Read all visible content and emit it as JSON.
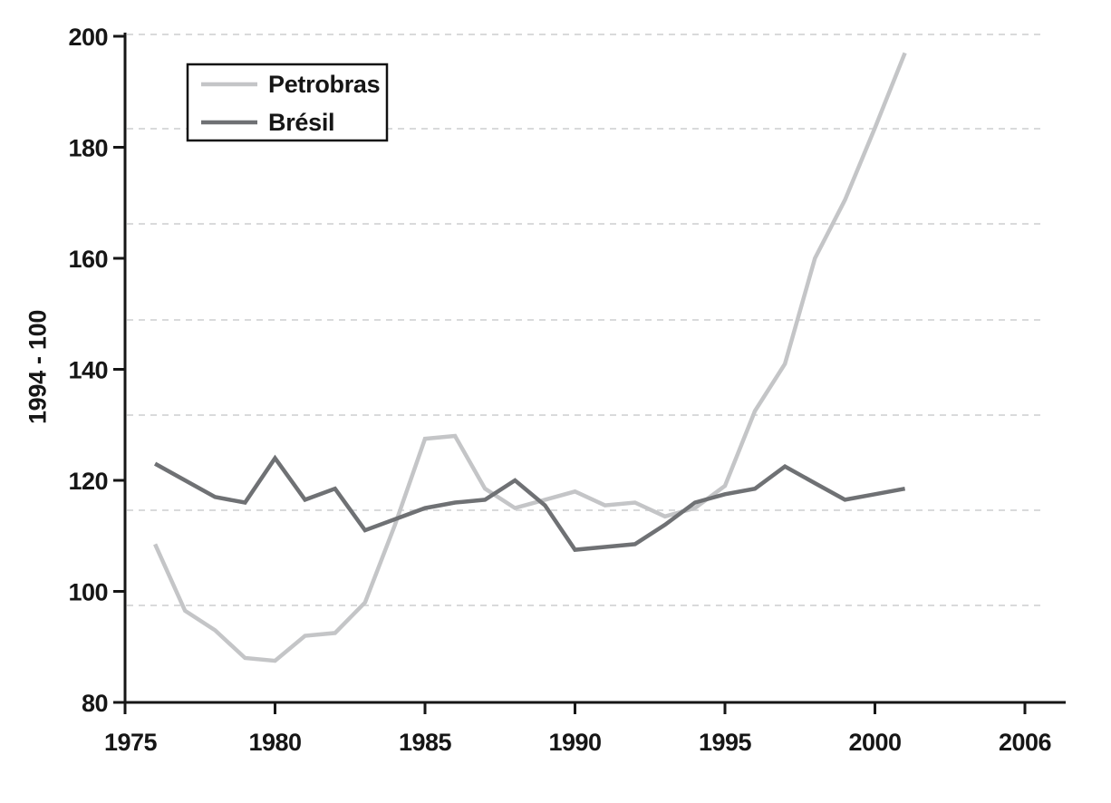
{
  "chart_data": {
    "type": "line",
    "title": "",
    "ylabel": "1994 - 100",
    "x_axis": {
      "ticks": [
        {
          "label": "1975",
          "year": 1975
        },
        {
          "label": "1980",
          "year": 1980
        },
        {
          "label": "1985",
          "year": 1985
        },
        {
          "label": "1990",
          "year": 1990
        },
        {
          "label": "1995",
          "year": 1995
        },
        {
          "label": "2000",
          "year": 2000
        },
        {
          "label": "2006",
          "year": 2005
        }
      ],
      "range_note": "axis line extends past last tick; last tick labeled 2006 sits at the 5-year spacing slot"
    },
    "y_axis": {
      "ticks": [
        "80",
        "100",
        "120",
        "140",
        "160",
        "180",
        "200"
      ],
      "tick_values": [
        80,
        100,
        120,
        140,
        160,
        180,
        200
      ],
      "ylim": [
        80,
        200
      ]
    },
    "grid": {
      "style": "dashed",
      "orientation": "horizontal",
      "color": "#d9dadb",
      "count": 7
    },
    "legend": {
      "position": "top-left",
      "border_color": "#111111"
    },
    "x": [
      1976,
      1977,
      1978,
      1979,
      1980,
      1981,
      1982,
      1983,
      1984,
      1985,
      1986,
      1987,
      1988,
      1989,
      1990,
      1991,
      1992,
      1993,
      1994,
      1995,
      1996,
      1997,
      1998,
      1999,
      2000,
      2001
    ],
    "series": [
      {
        "name": "Petrobras",
        "color": "#c4c5c7",
        "values": [
          108.5,
          96.5,
          93,
          88,
          87.5,
          92,
          92.5,
          98,
          112,
          127.5,
          128,
          118.5,
          115,
          116.5,
          118,
          115.5,
          116,
          113.5,
          115,
          119,
          132.5,
          141,
          160,
          170.5,
          183.5,
          197
        ]
      },
      {
        "name": "Brésil",
        "color": "#6f7174",
        "values": [
          123,
          120,
          117,
          116,
          124,
          116.5,
          118.5,
          111,
          113,
          115,
          116,
          116.5,
          120,
          115.5,
          107.5,
          108,
          108.5,
          112,
          116,
          117.5,
          118.5,
          122.5,
          119.5,
          116.5,
          117.5,
          118.5
        ]
      }
    ],
    "axis_color": "#161616"
  }
}
